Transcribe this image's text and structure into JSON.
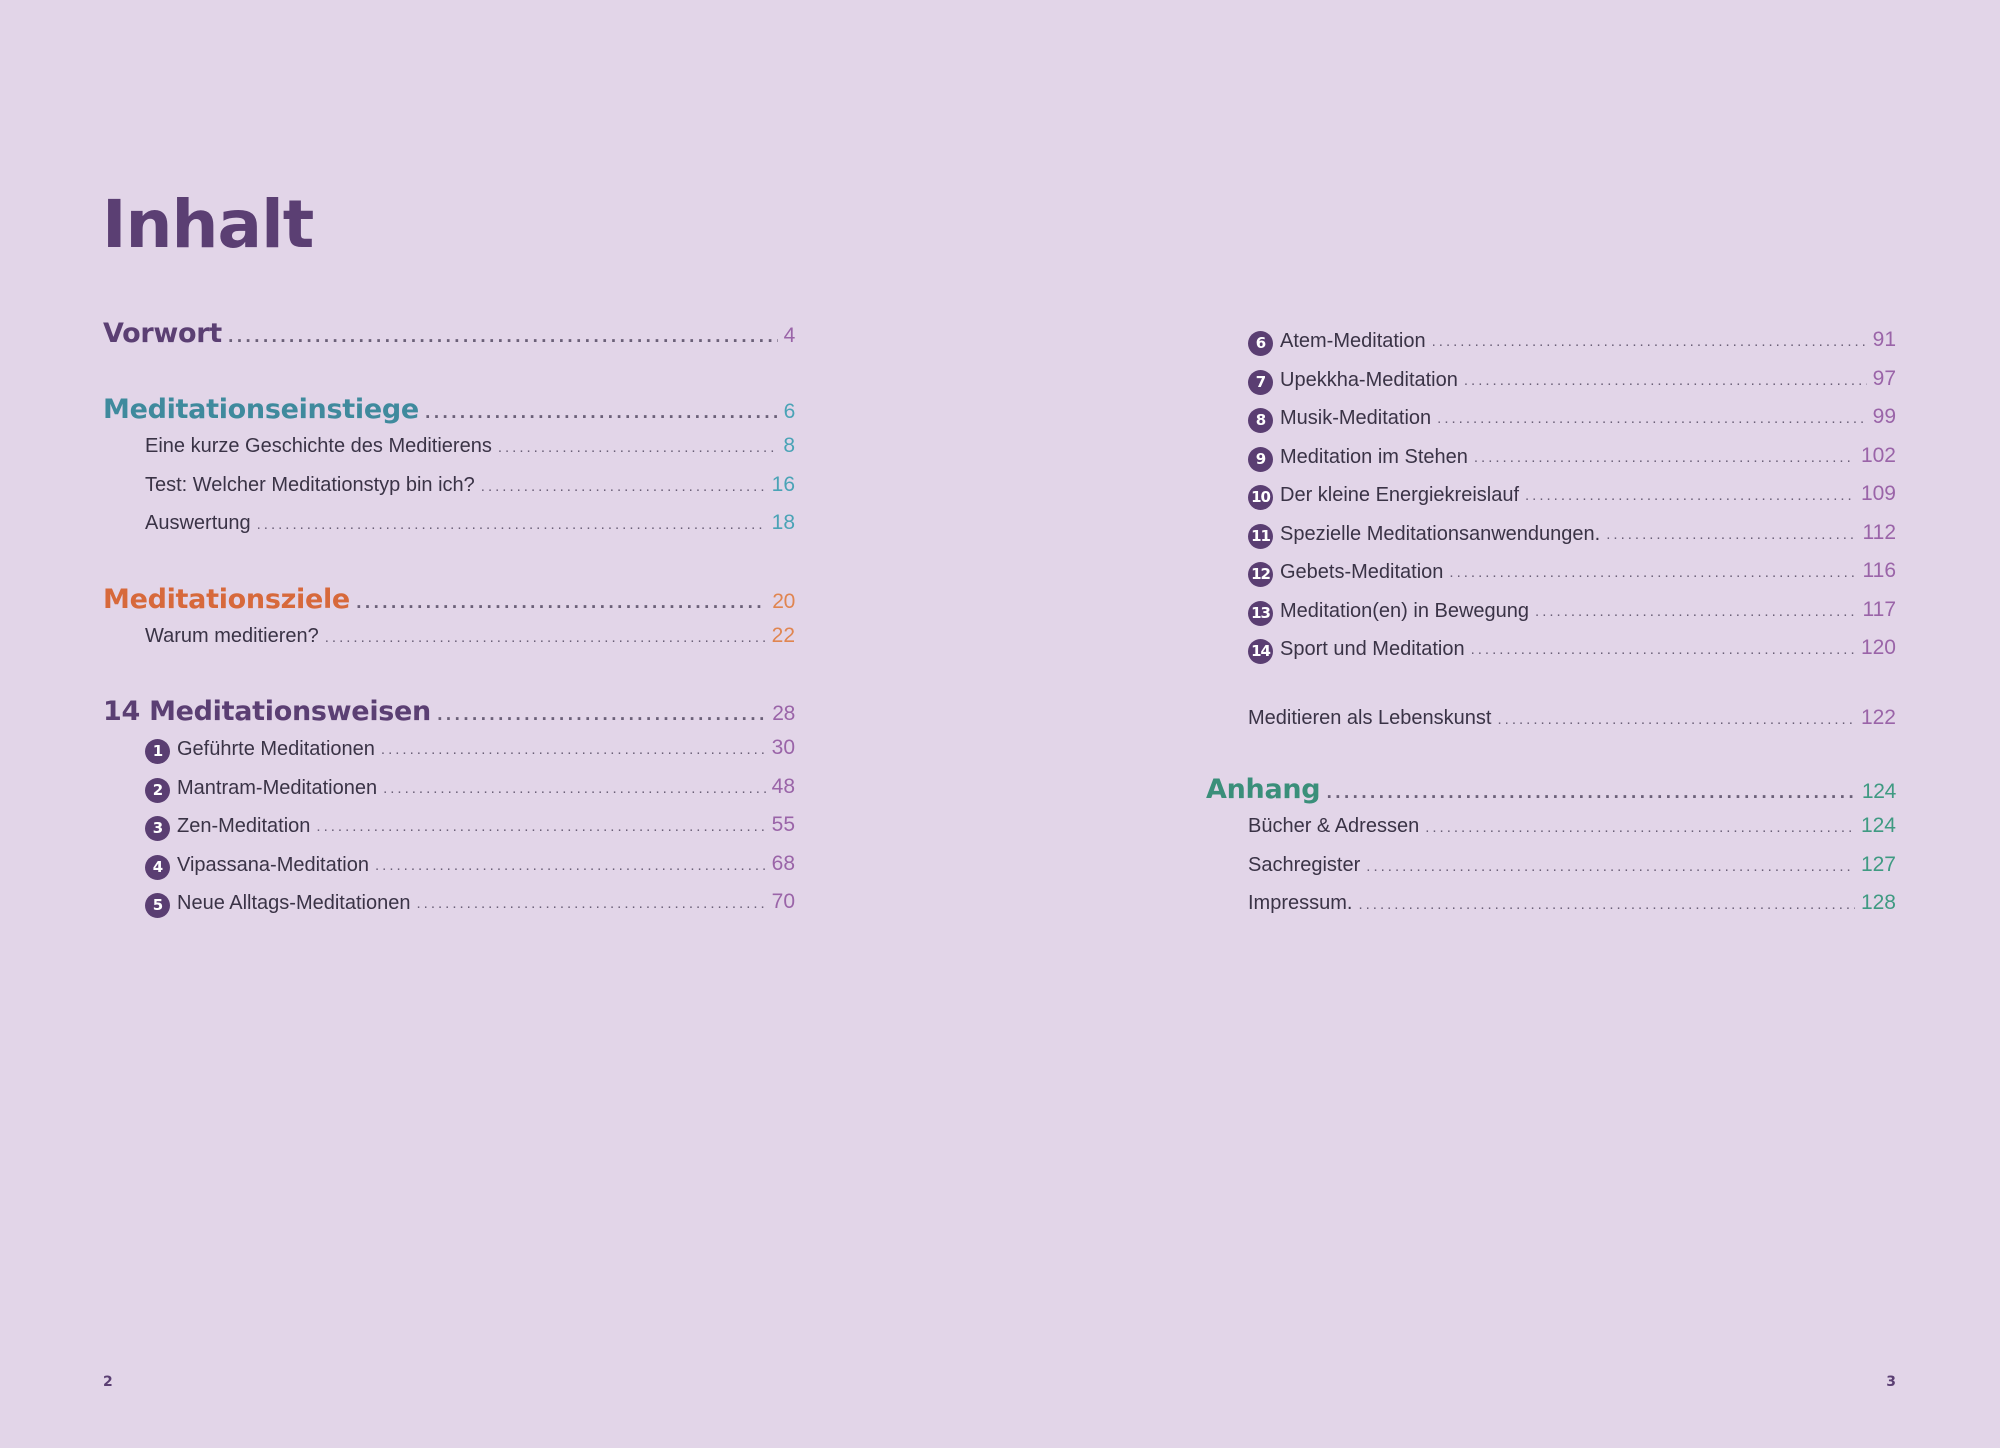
{
  "title": "Inhalt",
  "left": {
    "vorwort": {
      "label": "Vorwort",
      "page": "4"
    },
    "einstiege": {
      "label": "Meditationseinstiege",
      "page": "6",
      "items": [
        {
          "label": "Eine kurze Geschichte des Meditierens",
          "page": "8"
        },
        {
          "label": "Test: Welcher Meditationstyp bin ich?",
          "page": "16"
        },
        {
          "label": "Auswertung",
          "page": "18"
        }
      ]
    },
    "ziele": {
      "label": "Meditationsziele",
      "page": "20",
      "items": [
        {
          "label": "Warum meditieren?",
          "page": "22"
        }
      ]
    },
    "weisen": {
      "label": "14 Meditationsweisen",
      "page": "28",
      "items": [
        {
          "num": "1",
          "label": "Geführte Meditationen",
          "page": "30"
        },
        {
          "num": "2",
          "label": "Mantram-Meditationen",
          "page": "48"
        },
        {
          "num": "3",
          "label": "Zen-Meditation",
          "page": "55"
        },
        {
          "num": "4",
          "label": "Vipassana-Meditation",
          "page": "68"
        },
        {
          "num": "5",
          "label": "Neue Alltags-Meditationen",
          "page": "70"
        }
      ]
    }
  },
  "right": {
    "weisen_cont": [
      {
        "num": "6",
        "label": "Atem-Meditation",
        "page": "91"
      },
      {
        "num": "7",
        "label": "Upekkha-Meditation",
        "page": "97"
      },
      {
        "num": "8",
        "label": "Musik-Meditation",
        "page": "99"
      },
      {
        "num": "9",
        "label": "Meditation im Stehen",
        "page": "102"
      },
      {
        "num": "10",
        "label": "Der kleine Energiekreislauf",
        "page": "109"
      },
      {
        "num": "11",
        "label": "Spezielle Meditationsanwendungen.",
        "page": "112"
      },
      {
        "num": "12",
        "label": "Gebets-Meditation",
        "page": "116"
      },
      {
        "num": "13",
        "label": "Meditation(en) in Bewegung",
        "page": "117"
      },
      {
        "num": "14",
        "label": "Sport und Meditation",
        "page": "120"
      }
    ],
    "lebenskunst": {
      "label": "Meditieren als Lebenskunst",
      "page": "122"
    },
    "anhang": {
      "label": "Anhang",
      "page": "124",
      "items": [
        {
          "label": "Bücher & Adressen",
          "page": "124"
        },
        {
          "label": "Sachregister",
          "page": "127"
        },
        {
          "label": "Impressum.",
          "page": "128"
        }
      ]
    }
  },
  "folios": {
    "left": "2",
    "right": "3"
  },
  "colors": {
    "background": "#e2d5e8",
    "heading_purple": "#5b3f73",
    "heading_teal": "#3f8a9d",
    "heading_orange": "#d7693b",
    "heading_green": "#3a8f7a",
    "badge": "#5a3e72"
  }
}
